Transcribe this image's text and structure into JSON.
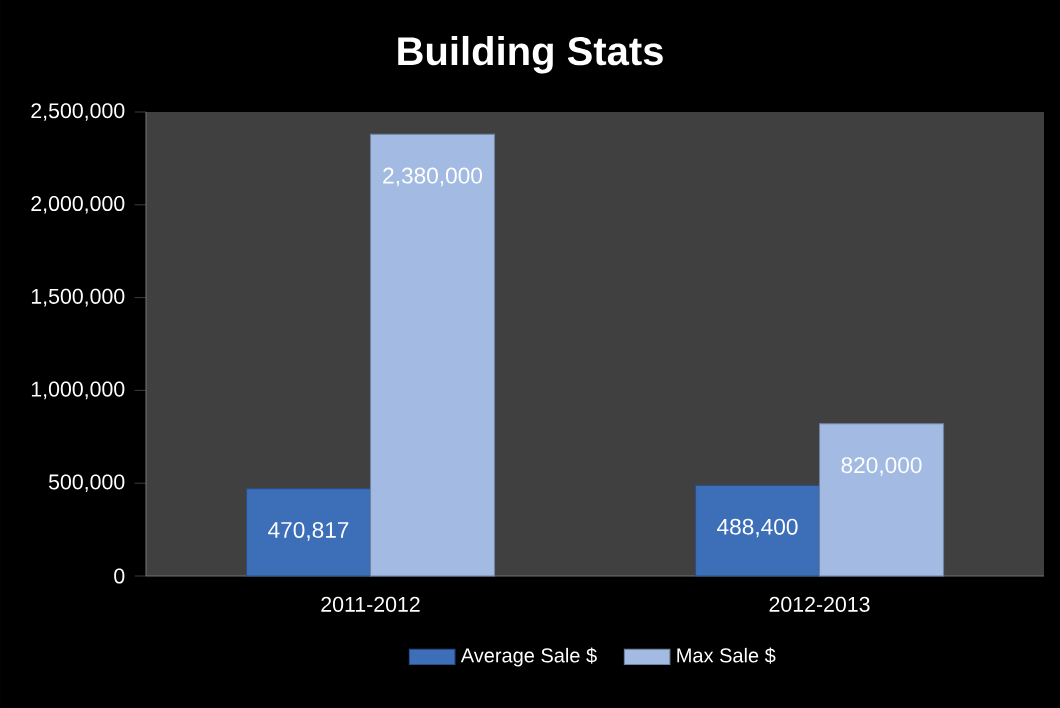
{
  "chart_data": {
    "type": "bar",
    "title": "Building Stats",
    "categories": [
      "2011-2012",
      "2012-2013"
    ],
    "series": [
      {
        "name": "Average Sale $",
        "color": "#3c6fb8",
        "values": [
          470817,
          488400
        ],
        "value_labels": [
          "470,817",
          "488,400"
        ]
      },
      {
        "name": "Max Sale $",
        "color": "#a3bbe3",
        "values": [
          2380000,
          820000
        ],
        "value_labels": [
          "2,380,000",
          "820,000"
        ]
      }
    ],
    "ylim": [
      0,
      2500000
    ],
    "yticks": [
      {
        "value": 0,
        "label": "0"
      },
      {
        "value": 500000,
        "label": "500,000"
      },
      {
        "value": 1000000,
        "label": "1,000,000"
      },
      {
        "value": 1500000,
        "label": "1,500,000"
      },
      {
        "value": 2000000,
        "label": "2,000,000"
      },
      {
        "value": 2500000,
        "label": "2,500,000"
      }
    ],
    "grid": false,
    "legend": "bottom"
  }
}
